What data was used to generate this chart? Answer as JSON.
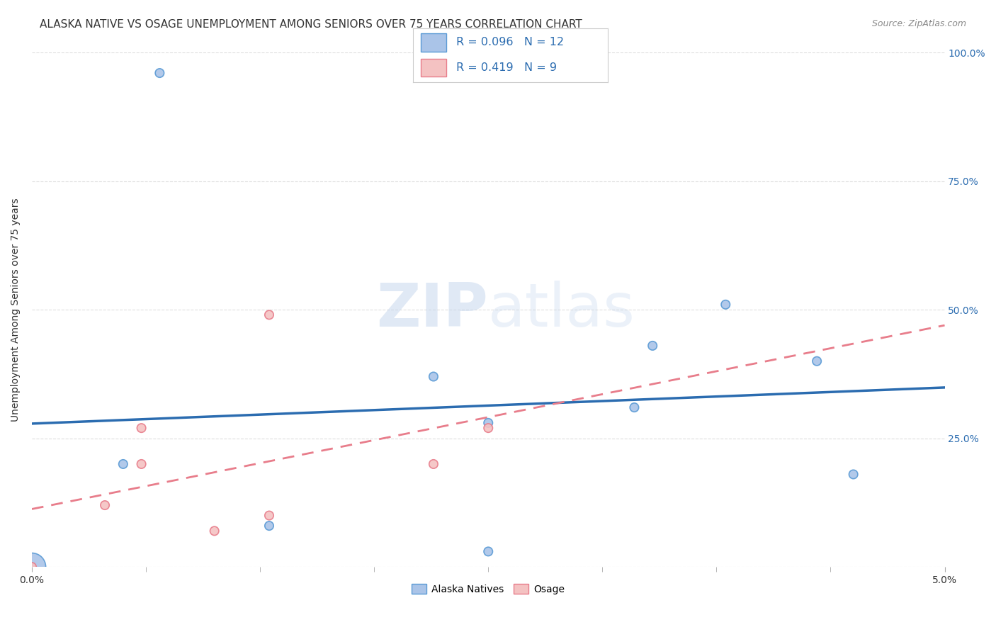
{
  "title": "ALASKA NATIVE VS OSAGE UNEMPLOYMENT AMONG SENIORS OVER 75 YEARS CORRELATION CHART",
  "source": "Source: ZipAtlas.com",
  "ylabel": "Unemployment Among Seniors over 75 years",
  "xlabel": "",
  "xlim": [
    0.0,
    0.05
  ],
  "ylim": [
    0.0,
    1.0
  ],
  "xticks": [
    0.0,
    0.05
  ],
  "xtick_labels": [
    "0.0%",
    "5.0%"
  ],
  "yticks": [
    0.0,
    0.25,
    0.5,
    0.75,
    1.0
  ],
  "ytick_labels": [
    "",
    "25.0%",
    "50.0%",
    "75.0%",
    "100.0%"
  ],
  "alaska_natives": {
    "x": [
      0.0,
      0.005,
      0.007,
      0.013,
      0.022,
      0.025,
      0.025,
      0.033,
      0.034,
      0.038,
      0.043,
      0.045
    ],
    "y": [
      0.0,
      0.2,
      0.96,
      0.08,
      0.37,
      0.28,
      0.03,
      0.31,
      0.43,
      0.51,
      0.4,
      0.18
    ],
    "sizes": [
      800,
      80,
      80,
      80,
      80,
      80,
      80,
      80,
      80,
      80,
      80,
      80
    ],
    "color": "#aac4e8",
    "edgecolor": "#5b9bd5",
    "R": 0.096,
    "N": 12,
    "line_color": "#2b6cb0",
    "line_style": "-"
  },
  "osage": {
    "x": [
      0.0,
      0.004,
      0.006,
      0.006,
      0.01,
      0.013,
      0.013,
      0.022,
      0.025
    ],
    "y": [
      0.0,
      0.12,
      0.2,
      0.27,
      0.07,
      0.1,
      0.49,
      0.2,
      0.27
    ],
    "sizes": [
      80,
      80,
      80,
      80,
      80,
      80,
      80,
      80,
      80
    ],
    "color": "#f4c2c2",
    "edgecolor": "#e87d8b",
    "R": 0.419,
    "N": 9,
    "line_color": "#e87d8b",
    "line_style": "--"
  },
  "watermark_zip": "ZIP",
  "watermark_atlas": "atlas",
  "background_color": "#ffffff",
  "grid_color": "#dddddd",
  "title_fontsize": 11,
  "axis_label_fontsize": 10,
  "tick_fontsize": 10,
  "legend_R_color": "#2b6cb0",
  "right_ytick_color": "#2b6cb0"
}
